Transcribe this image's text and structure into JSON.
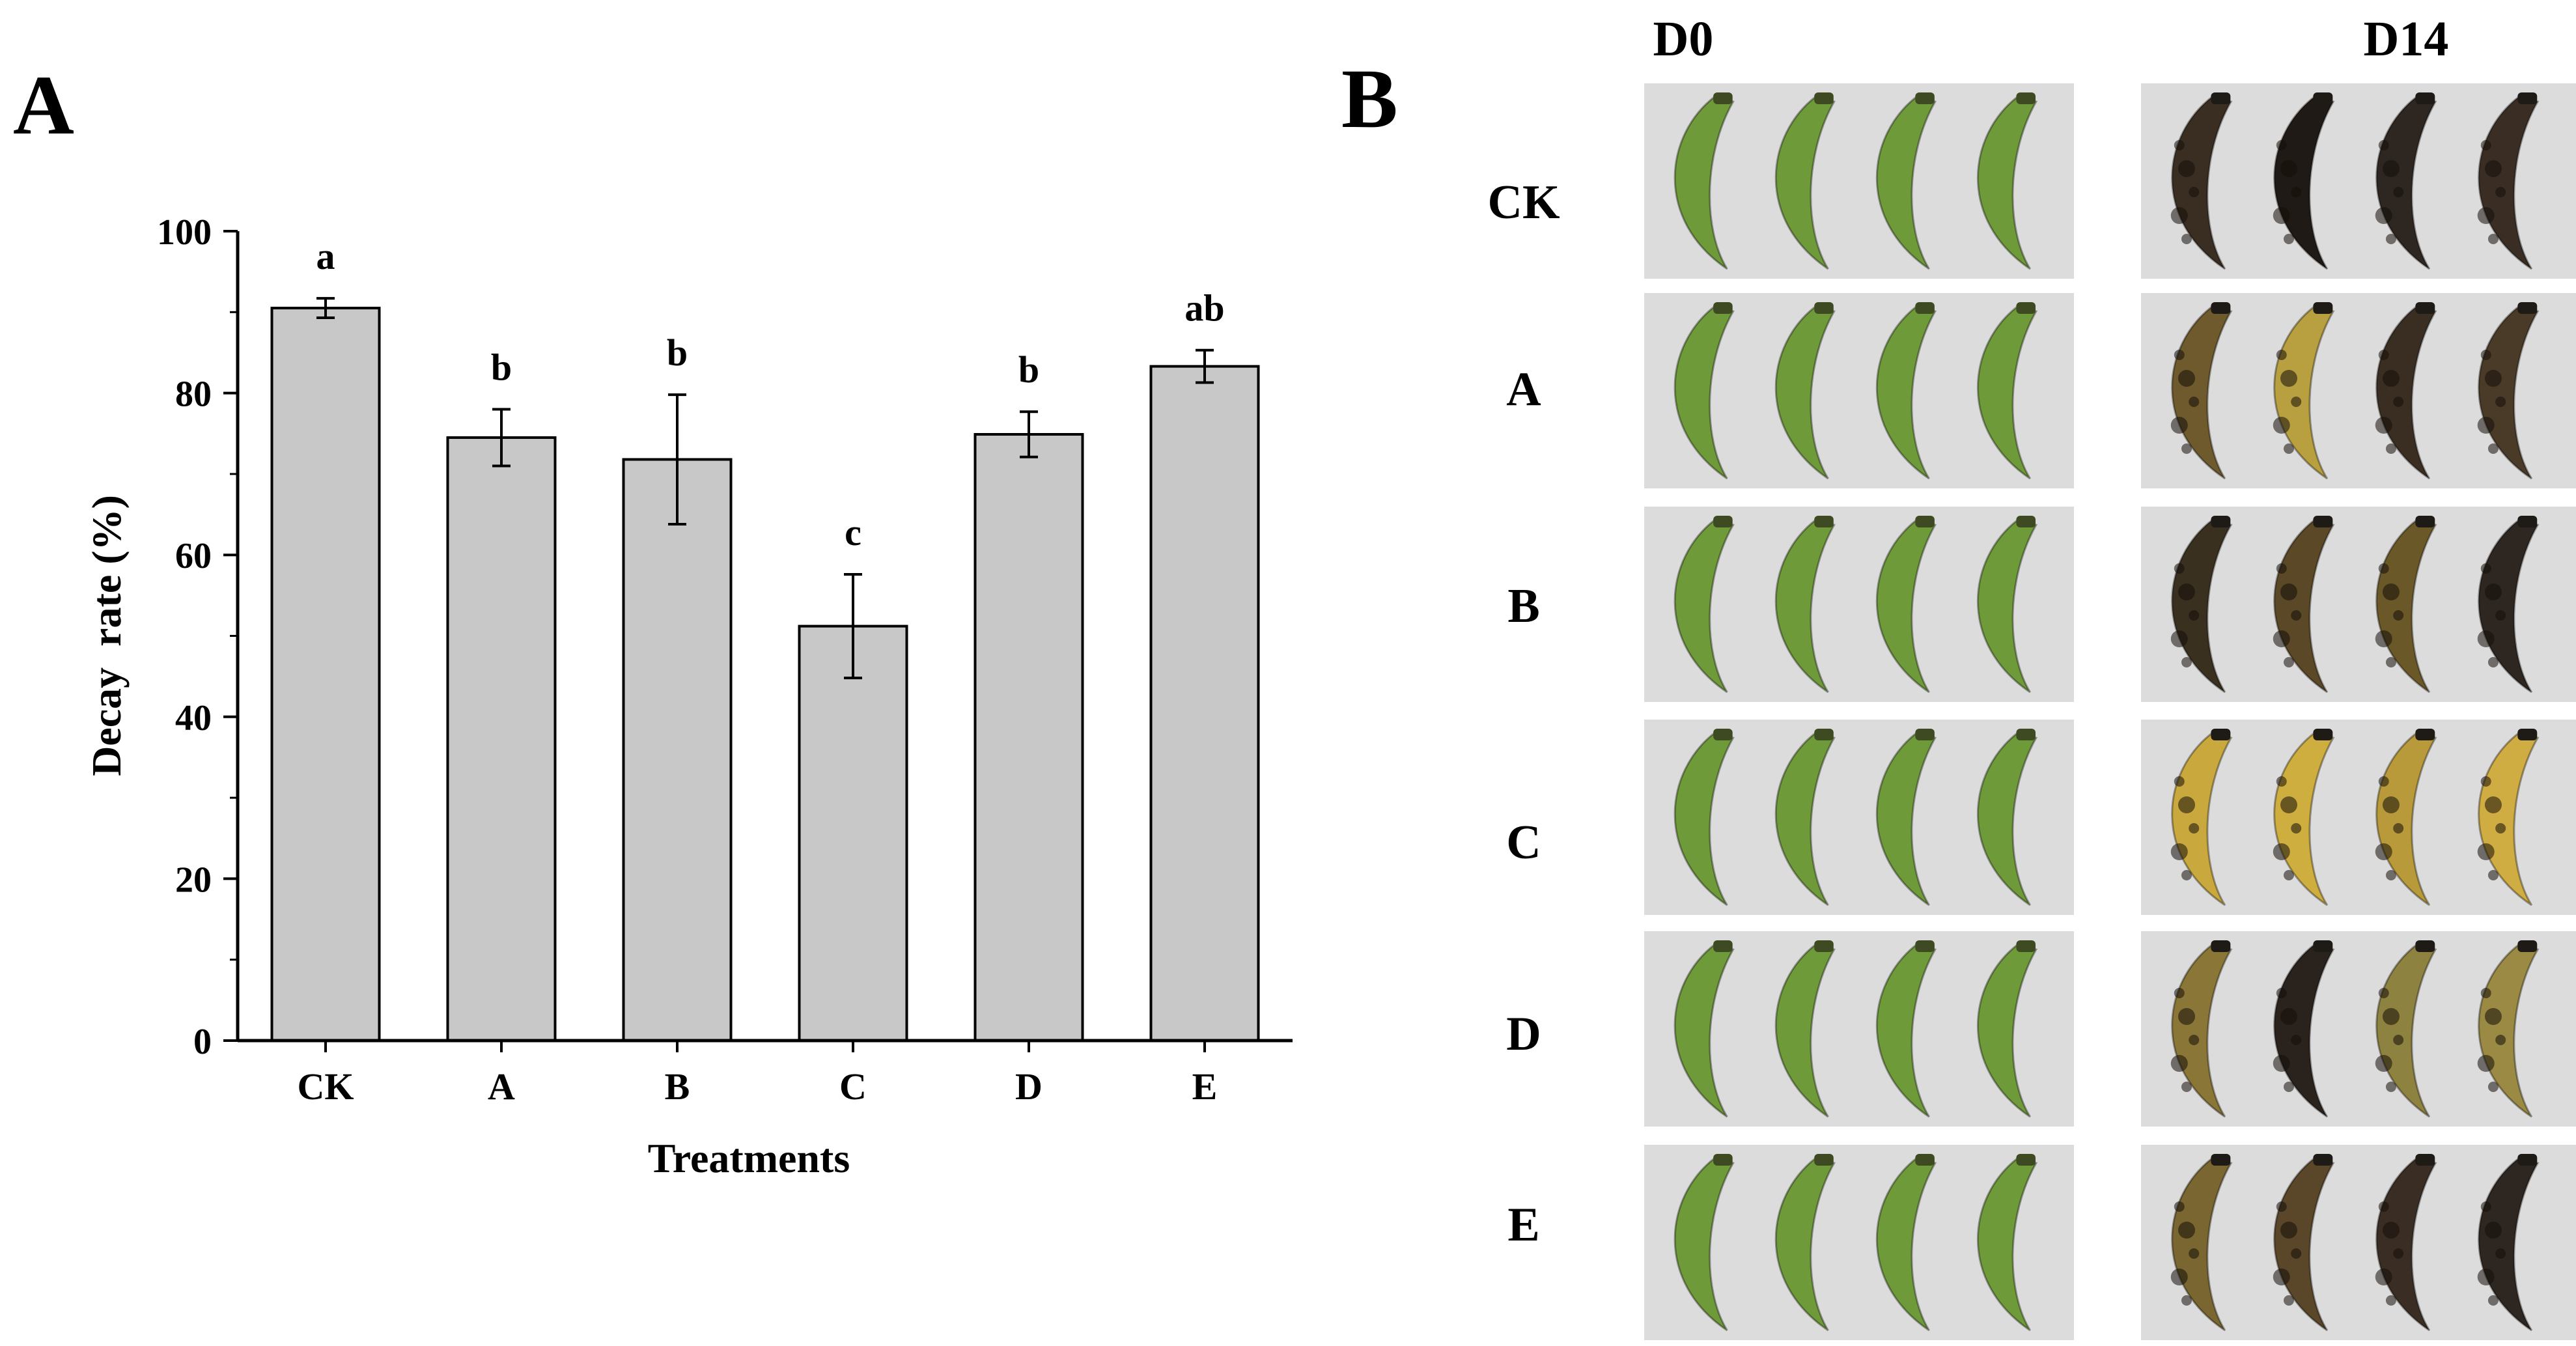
{
  "panel_a_label": "A",
  "panel_b_label": "B",
  "chart_data": {
    "type": "bar",
    "title": "",
    "xlabel": "Treatments",
    "ylabel": "Decay  rate (%)",
    "categories": [
      "CK",
      "A",
      "B",
      "C",
      "D",
      "E"
    ],
    "values": [
      90.5,
      74.5,
      71.8,
      51.2,
      74.9,
      83.3
    ],
    "errors": [
      1.2,
      3.5,
      8.0,
      6.4,
      2.8,
      2.0
    ],
    "significance_letters": [
      "a",
      "b",
      "b",
      "c",
      "b",
      "ab"
    ],
    "ylim": [
      0,
      100
    ],
    "yticks": [
      0,
      20,
      40,
      60,
      80,
      100
    ],
    "grid": false,
    "bar_color": "#c8c8c8",
    "edge_color": "#000000"
  },
  "photo_panel": {
    "columns": [
      "D0",
      "D14"
    ],
    "rows": [
      "CK",
      "A",
      "B",
      "C",
      "D",
      "E"
    ],
    "green_color": "#6f9a3a",
    "photo_bg": "#dcdcdc",
    "d14_tones": [
      [
        "#3a2e22",
        "#201a16",
        "#2e2620",
        "#3a2e24"
      ],
      [
        "#6e5a2c",
        "#b8a040",
        "#3a2e22",
        "#4a3a28"
      ],
      [
        "#3a3020",
        "#5a4826",
        "#6a5828",
        "#2e2620"
      ],
      [
        "#c9a93e",
        "#cfae40",
        "#b89a3a",
        "#d0ad42"
      ],
      [
        "#8a7636",
        "#2a221c",
        "#8e8240",
        "#9a8a44"
      ],
      [
        "#7a6630",
        "#5a4628",
        "#3a2e24",
        "#2e2620"
      ]
    ]
  }
}
